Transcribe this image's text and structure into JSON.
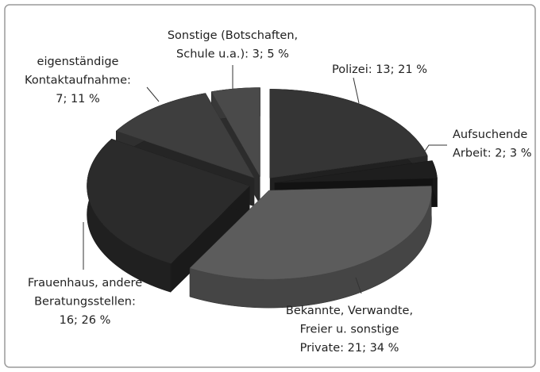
{
  "chart_data": {
    "type": "pie3d",
    "labels": [
      [
        "Polizei: 13; 21 %"
      ],
      [
        "Aufsuchende",
        "Arbeit: 2; 3 %"
      ],
      [
        "Bekannte, Verwandte,",
        "Freier u. sonstige",
        "Private: 21; 34 %"
      ],
      [
        "Frauenhaus, andere",
        "Beratungsstellen:",
        "16; 26 %"
      ],
      [
        "eigenständige",
        "Kontaktaufnahme:",
        "7; 11 %"
      ],
      [
        "Sonstige (Botschaften,",
        "Schule u.a.): 3; 5 %"
      ]
    ],
    "values": [
      13,
      2,
      21,
      16,
      7,
      3
    ],
    "colors": [
      "#353535",
      "#1e1e1e",
      "#5c5c5c",
      "#2b2b2b",
      "#3e3e3e",
      "#4a4a4a"
    ]
  }
}
